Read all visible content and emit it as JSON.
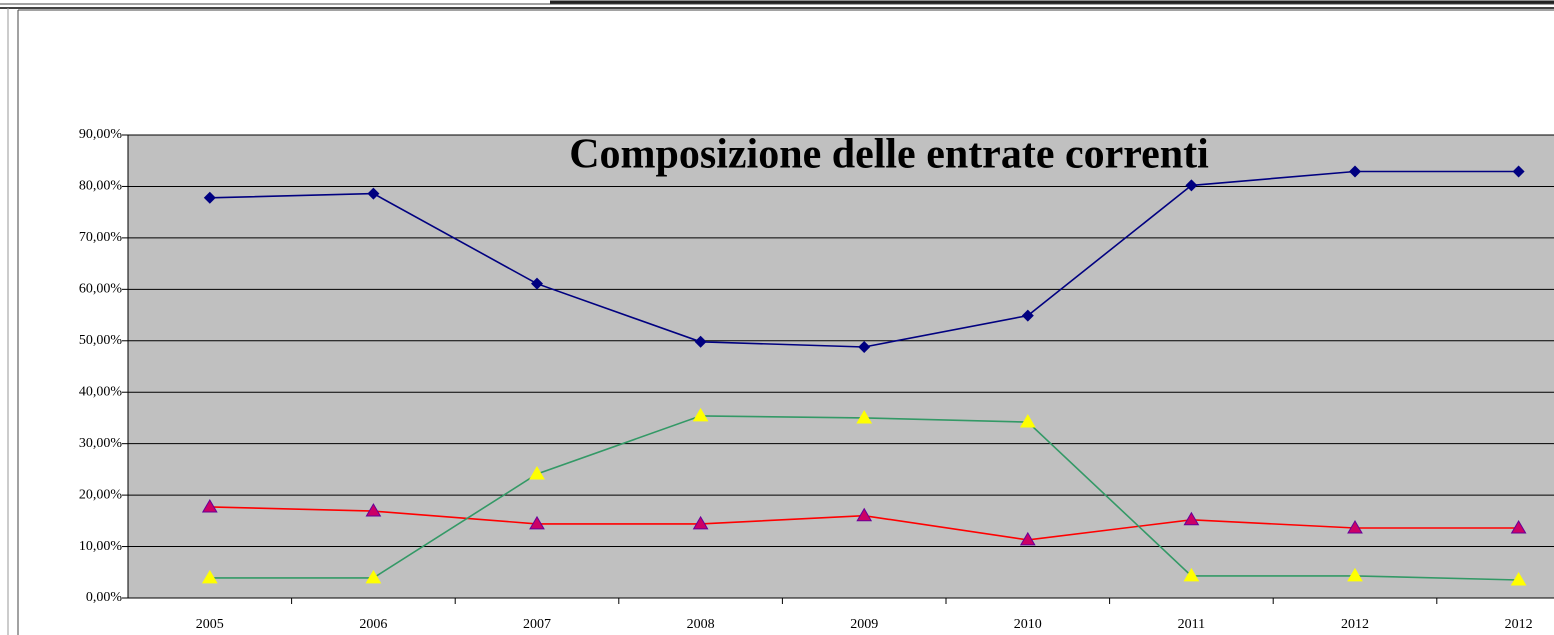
{
  "chart_data": {
    "type": "line",
    "title": "Composizione delle entrate correnti",
    "categories": [
      "2005",
      "2006",
      "2007",
      "2008",
      "2009",
      "2010",
      "2011",
      "2012",
      "2012"
    ],
    "series": [
      {
        "color": "#000080",
        "marker": "diamond",
        "marker_color": "#000080",
        "values": [
          77.8,
          78.6,
          61.1,
          49.8,
          48.8,
          54.9,
          80.2,
          82.9,
          82.9
        ]
      },
      {
        "color": "#ff0000",
        "marker": "triangle",
        "marker_color": "#cc0066",
        "values": [
          17.7,
          16.9,
          14.4,
          14.4,
          16.0,
          11.3,
          15.2,
          13.6,
          13.6
        ]
      },
      {
        "color": "#339966",
        "marker": "triangle",
        "marker_color": "#ffff00",
        "values": [
          3.9,
          3.9,
          24.1,
          35.4,
          35.0,
          34.2,
          4.3,
          4.3,
          3.5
        ]
      }
    ],
    "ylim": [
      0,
      90
    ],
    "yticks": [
      {
        "value": 0,
        "label": "0,00%"
      },
      {
        "value": 10,
        "label": "10,00%"
      },
      {
        "value": 20,
        "label": "20,00%"
      },
      {
        "value": 30,
        "label": "30,00%"
      },
      {
        "value": 40,
        "label": "40,00%"
      },
      {
        "value": 50,
        "label": "50,00%"
      },
      {
        "value": 60,
        "label": "60,00%"
      },
      {
        "value": 70,
        "label": "70,00%"
      },
      {
        "value": 80,
        "label": "80,00%"
      },
      {
        "value": 90,
        "label": "90,00%"
      }
    ],
    "grid": true,
    "plot_background": "#c0c0c0"
  }
}
